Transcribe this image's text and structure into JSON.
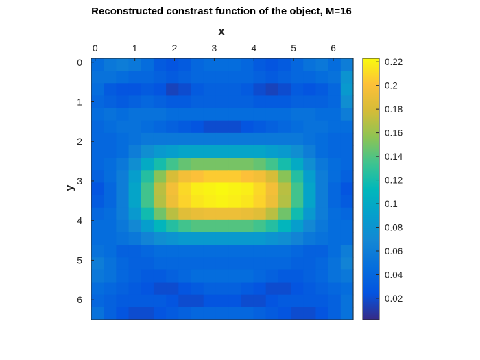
{
  "chart_data": {
    "type": "heatmap",
    "title": "Reconstructed constrast function of the object, M=16",
    "xlabel": "x",
    "ylabel": "y",
    "x_axis_position": "top",
    "y_axis_direction": "reversed",
    "xlim": [
      -0.1,
      6.5
    ],
    "ylim": [
      -0.1,
      6.5
    ],
    "x_ticks": [
      "0",
      "1",
      "2",
      "3",
      "4",
      "5",
      "6"
    ],
    "y_ticks": [
      "0",
      "1",
      "2",
      "3",
      "4",
      "5",
      "6"
    ],
    "grid_size": [
      21,
      21
    ],
    "colormap": "parula",
    "colorbar": {
      "range": [
        0.002,
        0.223
      ],
      "ticks": [
        0.02,
        0.04,
        0.06,
        0.08,
        0.1,
        0.12,
        0.14,
        0.16,
        0.18,
        0.2,
        0.22
      ],
      "tick_labels": [
        "0.02",
        "0.04",
        "0.06",
        "0.08",
        "0.1",
        "0.12",
        "0.14",
        "0.16",
        "0.18",
        "0.2",
        "0.22"
      ],
      "placement": "right"
    },
    "values": [
      [
        0.045,
        0.055,
        0.06,
        0.055,
        0.045,
        0.03,
        0.025,
        0.03,
        0.04,
        0.045,
        0.045,
        0.045,
        0.04,
        0.03,
        0.025,
        0.03,
        0.04,
        0.05,
        0.055,
        0.045,
        0.06
      ],
      [
        0.05,
        0.05,
        0.045,
        0.04,
        0.04,
        0.035,
        0.03,
        0.035,
        0.04,
        0.04,
        0.04,
        0.04,
        0.04,
        0.035,
        0.03,
        0.035,
        0.04,
        0.04,
        0.045,
        0.05,
        0.08
      ],
      [
        0.045,
        0.03,
        0.025,
        0.025,
        0.03,
        0.025,
        0.015,
        0.02,
        0.03,
        0.035,
        0.035,
        0.035,
        0.03,
        0.02,
        0.015,
        0.02,
        0.03,
        0.025,
        0.03,
        0.04,
        0.085
      ],
      [
        0.04,
        0.035,
        0.03,
        0.035,
        0.04,
        0.035,
        0.03,
        0.03,
        0.035,
        0.035,
        0.035,
        0.035,
        0.035,
        0.03,
        0.03,
        0.03,
        0.035,
        0.035,
        0.035,
        0.04,
        0.075
      ],
      [
        0.045,
        0.05,
        0.045,
        0.05,
        0.05,
        0.05,
        0.045,
        0.045,
        0.045,
        0.045,
        0.045,
        0.045,
        0.045,
        0.045,
        0.045,
        0.045,
        0.05,
        0.05,
        0.045,
        0.045,
        0.06
      ],
      [
        0.04,
        0.045,
        0.05,
        0.05,
        0.045,
        0.04,
        0.035,
        0.03,
        0.025,
        0.02,
        0.02,
        0.02,
        0.025,
        0.03,
        0.035,
        0.04,
        0.045,
        0.05,
        0.05,
        0.045,
        0.045
      ],
      [
        0.04,
        0.04,
        0.045,
        0.05,
        0.055,
        0.055,
        0.055,
        0.055,
        0.055,
        0.055,
        0.055,
        0.055,
        0.055,
        0.055,
        0.055,
        0.055,
        0.055,
        0.05,
        0.045,
        0.04,
        0.04
      ],
      [
        0.04,
        0.04,
        0.045,
        0.06,
        0.075,
        0.085,
        0.09,
        0.095,
        0.095,
        0.095,
        0.095,
        0.095,
        0.095,
        0.095,
        0.09,
        0.085,
        0.075,
        0.06,
        0.045,
        0.04,
        0.04
      ],
      [
        0.04,
        0.045,
        0.055,
        0.075,
        0.1,
        0.12,
        0.135,
        0.145,
        0.15,
        0.15,
        0.15,
        0.15,
        0.15,
        0.145,
        0.135,
        0.12,
        0.1,
        0.075,
        0.055,
        0.045,
        0.04
      ],
      [
        0.035,
        0.045,
        0.06,
        0.09,
        0.125,
        0.155,
        0.18,
        0.195,
        0.2,
        0.205,
        0.205,
        0.205,
        0.2,
        0.195,
        0.18,
        0.155,
        0.125,
        0.09,
        0.06,
        0.045,
        0.035
      ],
      [
        0.025,
        0.04,
        0.06,
        0.095,
        0.135,
        0.17,
        0.195,
        0.21,
        0.218,
        0.22,
        0.222,
        0.22,
        0.218,
        0.21,
        0.195,
        0.17,
        0.135,
        0.095,
        0.06,
        0.04,
        0.025
      ],
      [
        0.03,
        0.04,
        0.06,
        0.095,
        0.135,
        0.168,
        0.192,
        0.208,
        0.215,
        0.218,
        0.22,
        0.218,
        0.215,
        0.208,
        0.192,
        0.168,
        0.135,
        0.095,
        0.06,
        0.04,
        0.03
      ],
      [
        0.04,
        0.045,
        0.06,
        0.085,
        0.118,
        0.148,
        0.17,
        0.185,
        0.19,
        0.192,
        0.192,
        0.192,
        0.19,
        0.185,
        0.17,
        0.148,
        0.118,
        0.085,
        0.06,
        0.045,
        0.04
      ],
      [
        0.045,
        0.045,
        0.055,
        0.07,
        0.09,
        0.11,
        0.125,
        0.135,
        0.14,
        0.14,
        0.14,
        0.14,
        0.14,
        0.135,
        0.125,
        0.11,
        0.09,
        0.07,
        0.055,
        0.045,
        0.045
      ],
      [
        0.045,
        0.045,
        0.05,
        0.055,
        0.065,
        0.075,
        0.08,
        0.085,
        0.085,
        0.085,
        0.085,
        0.085,
        0.085,
        0.085,
        0.08,
        0.075,
        0.065,
        0.055,
        0.05,
        0.045,
        0.045
      ],
      [
        0.05,
        0.045,
        0.035,
        0.035,
        0.04,
        0.045,
        0.045,
        0.045,
        0.045,
        0.045,
        0.045,
        0.045,
        0.045,
        0.045,
        0.045,
        0.045,
        0.04,
        0.035,
        0.035,
        0.045,
        0.06
      ],
      [
        0.06,
        0.05,
        0.04,
        0.035,
        0.035,
        0.04,
        0.04,
        0.04,
        0.04,
        0.04,
        0.04,
        0.04,
        0.04,
        0.04,
        0.04,
        0.04,
        0.035,
        0.035,
        0.04,
        0.05,
        0.065
      ],
      [
        0.055,
        0.05,
        0.04,
        0.035,
        0.03,
        0.03,
        0.035,
        0.04,
        0.045,
        0.045,
        0.045,
        0.045,
        0.045,
        0.04,
        0.035,
        0.03,
        0.03,
        0.035,
        0.04,
        0.05,
        0.055
      ],
      [
        0.045,
        0.04,
        0.035,
        0.03,
        0.025,
        0.02,
        0.02,
        0.025,
        0.03,
        0.035,
        0.035,
        0.035,
        0.03,
        0.025,
        0.02,
        0.02,
        0.025,
        0.03,
        0.035,
        0.04,
        0.045
      ],
      [
        0.04,
        0.035,
        0.03,
        0.03,
        0.03,
        0.03,
        0.025,
        0.02,
        0.02,
        0.025,
        0.025,
        0.025,
        0.02,
        0.02,
        0.025,
        0.03,
        0.03,
        0.03,
        0.03,
        0.035,
        0.05
      ],
      [
        0.05,
        0.035,
        0.025,
        0.02,
        0.02,
        0.025,
        0.03,
        0.035,
        0.04,
        0.04,
        0.04,
        0.04,
        0.04,
        0.035,
        0.03,
        0.025,
        0.02,
        0.02,
        0.025,
        0.035,
        0.05
      ]
    ]
  }
}
